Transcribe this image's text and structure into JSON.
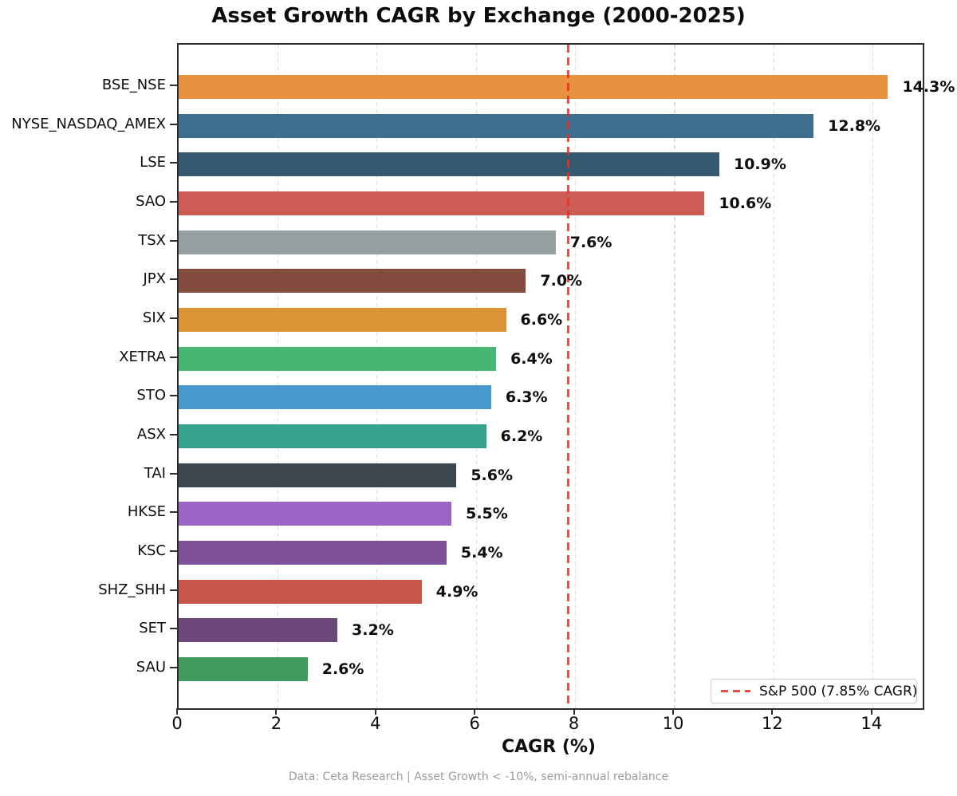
{
  "chart_data": {
    "type": "bar",
    "orientation": "horizontal",
    "title": "Asset Growth CAGR by Exchange (2000-2025)",
    "xlabel": "CAGR (%)",
    "ylabel": "",
    "xlim": [
      0,
      15
    ],
    "xticks": [
      0,
      2,
      4,
      6,
      8,
      10,
      12,
      14
    ],
    "grid": "vertical dashed gridlines at x ticks",
    "categories": [
      "BSE_NSE",
      "NYSE_NASDAQ_AMEX",
      "LSE",
      "SAO",
      "TSX",
      "JPX",
      "SIX",
      "XETRA",
      "STO",
      "ASX",
      "TAI",
      "HKSE",
      "KSC",
      "SHZ_SHH",
      "SET",
      "SAU"
    ],
    "values": [
      14.3,
      12.8,
      10.9,
      10.6,
      7.6,
      7.0,
      6.6,
      6.4,
      6.3,
      6.2,
      5.6,
      5.5,
      5.4,
      4.9,
      3.2,
      2.6
    ],
    "value_labels": [
      "14.3%",
      "12.8%",
      "10.9%",
      "10.6%",
      "7.6%",
      "7.0%",
      "6.6%",
      "6.4%",
      "6.3%",
      "6.2%",
      "5.6%",
      "5.5%",
      "5.4%",
      "4.9%",
      "3.2%",
      "2.6%"
    ],
    "bar_colors": [
      "#e8913e",
      "#3e6e8e",
      "#355a70",
      "#cd5c55",
      "#94a1a0",
      "#834b3e",
      "#d89435",
      "#46b674",
      "#4a98d0",
      "#35a38e",
      "#3c464c",
      "#9d64c6",
      "#7e5199",
      "#c6554a",
      "#6b477a",
      "#429a61"
    ],
    "reference_line": {
      "x": 7.85,
      "style": "dashed",
      "color": "#e53025"
    },
    "legend": {
      "position": "lower right",
      "entries": [
        {
          "label": "S&P 500 (7.85% CAGR)",
          "marker": "red-dashed-line",
          "color": "#f04135"
        }
      ]
    },
    "footnote": "Data: Ceta Research | Asset Growth < -10%, semi-annual rebalance",
    "axis_color": "#2d2d2d",
    "grid_color": "#dcdcdc"
  }
}
